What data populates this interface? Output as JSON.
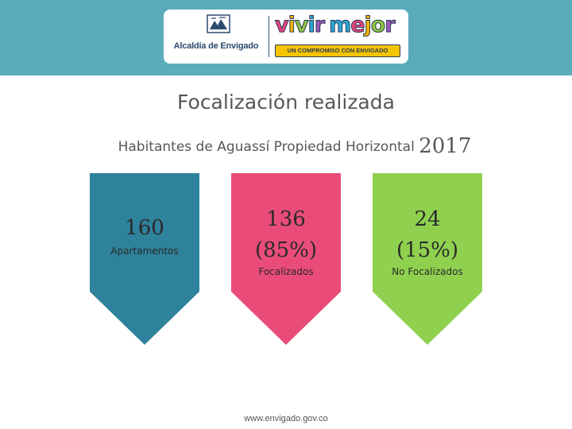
{
  "header": {
    "org_name": "Alcaldía de Envigado",
    "brand_name": "vivir mejor",
    "brand_tagline": "UN COMPROMISO CON ENVIGADO",
    "seal_icon": "envigado-seal-icon",
    "background_color": "#5aacbb"
  },
  "slide": {
    "title": "Focalización realizada",
    "subtitle": "Habitantes de Aguassí Propiedad Horizontal",
    "year": "2017"
  },
  "cards": [
    {
      "value": "160",
      "percent": "",
      "label": "Apartamentos",
      "color": "#2e829b"
    },
    {
      "value": "136",
      "percent": "(85%)",
      "label": "Focalizados",
      "color": "#ea4c79"
    },
    {
      "value": "24",
      "percent": "(15%)",
      "label": "No Focalizados",
      "color": "#8fd14f"
    }
  ],
  "footer": {
    "url": "www.envigado.gov.co"
  }
}
